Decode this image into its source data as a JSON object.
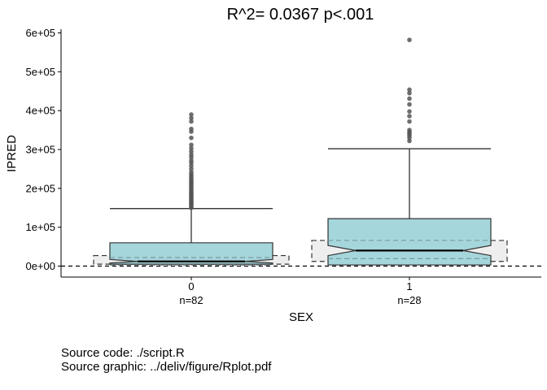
{
  "chart_data": {
    "type": "boxplot",
    "title": "R^2= 0.0367  p<.001",
    "xlabel": "SEX",
    "ylabel": "IPRED",
    "ylim": [
      -30000,
      610000
    ],
    "yticks": [
      {
        "value": 0,
        "label": "0e+00"
      },
      {
        "value": 100000,
        "label": "1e+05"
      },
      {
        "value": 200000,
        "label": "2e+05"
      },
      {
        "value": 300000,
        "label": "3e+05"
      },
      {
        "value": 400000,
        "label": "4e+05"
      },
      {
        "value": 500000,
        "label": "5e+05"
      },
      {
        "value": 600000,
        "label": "6e+05"
      }
    ],
    "reference_line": 0,
    "categories": [
      {
        "label": "0",
        "n_label": "n=82",
        "whisker_low": 0,
        "q1": 5000,
        "median": 12000,
        "q3": 60000,
        "whisker_high": 148000,
        "notch_low": 8000,
        "notch_high": 17000,
        "mean": 12000,
        "mean_box_low": 2000,
        "mean_box_high": 22000,
        "sd_low": 5000,
        "sd_high": 27000,
        "outliers": [
          150000,
          153000,
          157000,
          160000,
          163000,
          166000,
          170000,
          173000,
          176000,
          180000,
          183000,
          187000,
          190000,
          194000,
          198000,
          202000,
          206000,
          210000,
          214000,
          218000,
          222000,
          226000,
          231000,
          236000,
          242000,
          250000,
          258000,
          266000,
          272000,
          280000,
          287000,
          295000,
          303000,
          312000,
          330000,
          346000,
          353000,
          372000,
          381000,
          390000
        ]
      },
      {
        "label": "1",
        "n_label": "n=28",
        "whisker_low": 0,
        "q1": 3000,
        "median": 40000,
        "q3": 122000,
        "whisker_high": 302000,
        "notch_low": 27000,
        "notch_high": 53000,
        "mean": 40000,
        "mean_box_low": 19000,
        "mean_box_high": 66000,
        "sd_low": 12000,
        "sd_high": 66000,
        "outliers": [
          322000,
          330000,
          336000,
          341000,
          345000,
          350000,
          372000,
          386000,
          398000,
          416000,
          431000,
          445000,
          454000,
          582000
        ]
      }
    ],
    "colors": {
      "box_fill": "#a5d6dc",
      "box_stroke": "#333333",
      "ci_fill": "#eeeeee",
      "mean_line": "#7a9aa0",
      "outlier": "#555555"
    }
  },
  "footer": {
    "line1": "Source code: ./script.R",
    "line2": "Source graphic: ../deliv/figure/Rplot.pdf"
  }
}
